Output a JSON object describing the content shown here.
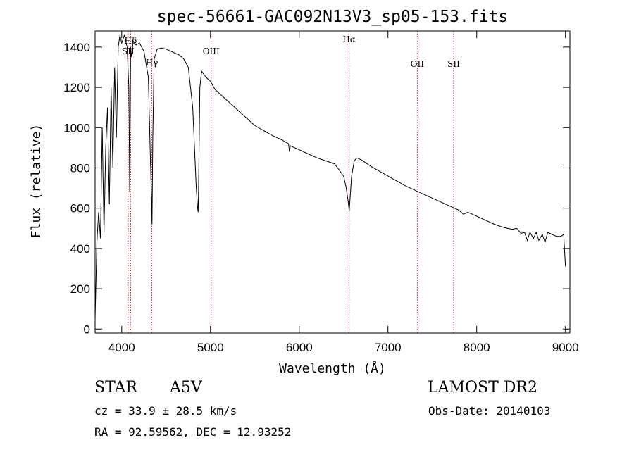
{
  "chart_data": {
    "type": "line",
    "title": "spec-56661-GAC092N13V3_sp05-153.fits",
    "xlabel": "Wavelength (Å)",
    "ylabel": "Flux (relative)",
    "xlim": [
      3700,
      9050
    ],
    "ylim": [
      -20,
      1480
    ],
    "xticks": [
      4000,
      5000,
      6000,
      7000,
      8000,
      9000
    ],
    "xtick_labels": [
      "4000",
      "5000",
      "6000",
      "7000",
      "8000",
      "9000"
    ],
    "yticks": [
      0,
      200,
      400,
      600,
      800,
      1000,
      1200,
      1400
    ],
    "ytick_labels": [
      "0",
      "200",
      "400",
      "600",
      "800",
      "1000",
      "1200",
      "1400"
    ],
    "grid": false,
    "line_color": "#000000",
    "marker_color": "#b22222",
    "series": [
      {
        "x": [
          3700,
          3720,
          3740,
          3760,
          3780,
          3800,
          3820,
          3840,
          3860,
          3880,
          3900,
          3920,
          3940,
          3960,
          3980,
          4000,
          4030,
          4060,
          4080,
          4090,
          4100,
          4110,
          4130,
          4160,
          4200,
          4250,
          4300,
          4320,
          4335,
          4341,
          4350,
          4365,
          4400,
          4450,
          4500,
          4550,
          4600,
          4650,
          4700,
          4750,
          4800,
          4820,
          4840,
          4855,
          4861,
          4867,
          4880,
          4900,
          4950,
          5000,
          5050,
          5100,
          5200,
          5300,
          5400,
          5500,
          5600,
          5700,
          5800,
          5880,
          5890,
          5900,
          5950,
          6000,
          6100,
          6200,
          6300,
          6400,
          6450,
          6500,
          6530,
          6550,
          6560,
          6563,
          6570,
          6590,
          6620,
          6650,
          6700,
          6800,
          6900,
          7000,
          7100,
          7200,
          7300,
          7400,
          7500,
          7600,
          7700,
          7800,
          7850,
          7900,
          8000,
          8100,
          8200,
          8300,
          8400,
          8450,
          8500,
          8540,
          8570,
          8600,
          8640,
          8670,
          8700,
          8740,
          8770,
          8800,
          8850,
          8900,
          8950,
          8980,
          9000
        ],
        "y": [
          50,
          430,
          580,
          450,
          1000,
          480,
          900,
          1100,
          620,
          1200,
          800,
          1300,
          950,
          1400,
          1460,
          1420,
          1460,
          1400,
          1200,
          680,
          1400,
          1350,
          1430,
          1410,
          1420,
          1380,
          1250,
          900,
          650,
          520,
          950,
          1340,
          1390,
          1395,
          1390,
          1380,
          1370,
          1360,
          1340,
          1300,
          1100,
          900,
          700,
          600,
          580,
          720,
          1200,
          1280,
          1250,
          1230,
          1190,
          1170,
          1130,
          1090,
          1050,
          1010,
          985,
          960,
          940,
          920,
          880,
          910,
          900,
          890,
          870,
          850,
          835,
          820,
          790,
          760,
          700,
          640,
          600,
          585,
          630,
          760,
          835,
          850,
          840,
          810,
          785,
          760,
          735,
          710,
          690,
          670,
          650,
          630,
          610,
          590,
          570,
          580,
          560,
          540,
          520,
          505,
          495,
          500,
          475,
          480,
          440,
          480,
          450,
          480,
          440,
          470,
          430,
          480,
          470,
          460,
          460,
          470,
          310
        ]
      }
    ],
    "line_markers": [
      {
        "label": "Hδ",
        "x": 4100
      },
      {
        "label": "SII",
        "x": 4072
      },
      {
        "label": "Hγ",
        "x": 4340
      },
      {
        "label": "OIII",
        "x": 5007
      },
      {
        "label": "Hα",
        "x": 6563
      },
      {
        "label": "OII",
        "x": 7330
      },
      {
        "label": "SII",
        "x": 7740
      }
    ]
  },
  "info": {
    "object_type": "STAR",
    "subclass": "A5V",
    "survey": "LAMOST DR2",
    "cz": "cz = 33.9 ± 28.5 km/s",
    "obs_date": "Obs-Date: 20140103",
    "coords": "RA =  92.59562, DEC =  12.93252"
  }
}
